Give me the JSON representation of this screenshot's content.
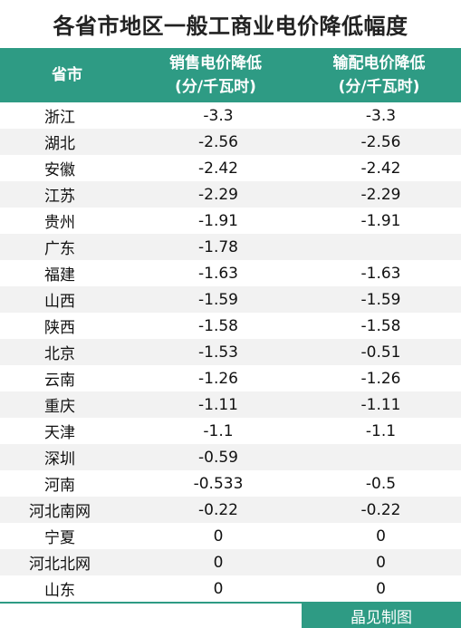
{
  "title": "各省市地区一般工商业电价降低幅度",
  "header": {
    "col1": "省市",
    "col2_line1": "销售电价降低",
    "col2_line2": "(分/千瓦时)",
    "col3_line1": "输配电价降低",
    "col3_line2": "(分/千瓦时)"
  },
  "rows": [
    {
      "province": "浙江",
      "sales": "-3.3",
      "transmission": "-3.3"
    },
    {
      "province": "湖北",
      "sales": "-2.56",
      "transmission": "-2.56"
    },
    {
      "province": "安徽",
      "sales": "-2.42",
      "transmission": "-2.42"
    },
    {
      "province": "江苏",
      "sales": "-2.29",
      "transmission": "-2.29"
    },
    {
      "province": "贵州",
      "sales": "-1.91",
      "transmission": "-1.91"
    },
    {
      "province": "广东",
      "sales": "-1.78",
      "transmission": ""
    },
    {
      "province": "福建",
      "sales": "-1.63",
      "transmission": "-1.63"
    },
    {
      "province": "山西",
      "sales": "-1.59",
      "transmission": "-1.59"
    },
    {
      "province": "陕西",
      "sales": "-1.58",
      "transmission": "-1.58"
    },
    {
      "province": "北京",
      "sales": "-1.53",
      "transmission": "-0.51"
    },
    {
      "province": "云南",
      "sales": "-1.26",
      "transmission": "-1.26"
    },
    {
      "province": "重庆",
      "sales": "-1.11",
      "transmission": "-1.11"
    },
    {
      "province": "天津",
      "sales": "-1.1",
      "transmission": "-1.1"
    },
    {
      "province": "深圳",
      "sales": "-0.59",
      "transmission": ""
    },
    {
      "province": "河南",
      "sales": "-0.533",
      "transmission": "-0.5"
    },
    {
      "province": "河北南网",
      "sales": "-0.22",
      "transmission": "-0.22"
    },
    {
      "province": "宁夏",
      "sales": "0",
      "transmission": "0"
    },
    {
      "province": "河北北网",
      "sales": "0",
      "transmission": "0"
    },
    {
      "province": "山东",
      "sales": "0",
      "transmission": "0"
    }
  ],
  "footer": "晶见制图",
  "colors": {
    "accent": "#2e9b84",
    "stripe": "#f2f2f2"
  }
}
